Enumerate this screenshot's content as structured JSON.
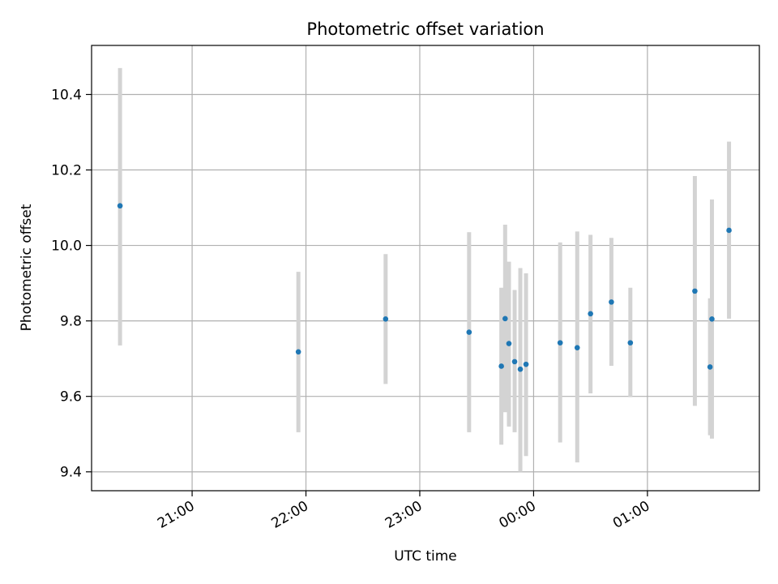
{
  "chart_data": {
    "type": "scatter",
    "title": "Photometric offset variation",
    "xlabel": "UTC time",
    "ylabel": "Photometric offset",
    "x_axis": {
      "kind": "time",
      "xlim": [
        "20:07",
        "01:59"
      ],
      "ticks": [
        "21:00",
        "22:00",
        "23:00",
        "00:00",
        "01:00"
      ]
    },
    "y_axis": {
      "ylim": [
        9.35,
        10.53
      ],
      "ticks": [
        "9.4",
        "9.6",
        "9.8",
        "10.0",
        "10.2",
        "10.4"
      ]
    },
    "grid": true,
    "colors": {
      "point": "#1f77b4",
      "errorbar": "#d3d3d3",
      "grid": "#b0b0b0"
    },
    "points": [
      {
        "x": "20:22",
        "y": 10.105,
        "err_low": 9.735,
        "err_high": 10.47
      },
      {
        "x": "21:56",
        "y": 9.718,
        "err_low": 9.505,
        "err_high": 9.93
      },
      {
        "x": "22:42",
        "y": 9.805,
        "err_low": 9.633,
        "err_high": 9.977
      },
      {
        "x": "23:26",
        "y": 9.77,
        "err_low": 9.505,
        "err_high": 10.035
      },
      {
        "x": "23:43",
        "y": 9.68,
        "err_low": 9.472,
        "err_high": 9.888
      },
      {
        "x": "23:45",
        "y": 9.806,
        "err_low": 9.558,
        "err_high": 10.055
      },
      {
        "x": "23:47",
        "y": 9.74,
        "err_low": 9.52,
        "err_high": 9.957
      },
      {
        "x": "23:50",
        "y": 9.692,
        "err_low": 9.505,
        "err_high": 9.882
      },
      {
        "x": "23:53",
        "y": 9.672,
        "err_low": 9.4,
        "err_high": 9.94
      },
      {
        "x": "23:56",
        "y": 9.685,
        "err_low": 9.442,
        "err_high": 9.926
      },
      {
        "x": "00:14",
        "y": 9.742,
        "err_low": 9.478,
        "err_high": 10.008
      },
      {
        "x": "00:23",
        "y": 9.729,
        "err_low": 9.425,
        "err_high": 10.037
      },
      {
        "x": "00:30",
        "y": 9.819,
        "err_low": 9.608,
        "err_high": 10.028
      },
      {
        "x": "00:41",
        "y": 9.85,
        "err_low": 9.681,
        "err_high": 10.02
      },
      {
        "x": "00:51",
        "y": 9.742,
        "err_low": 9.598,
        "err_high": 9.888
      },
      {
        "x": "01:25",
        "y": 9.879,
        "err_low": 9.575,
        "err_high": 10.184
      },
      {
        "x": "01:33",
        "y": 9.678,
        "err_low": 9.497,
        "err_high": 9.86
      },
      {
        "x": "01:34",
        "y": 9.805,
        "err_low": 9.488,
        "err_high": 10.122
      },
      {
        "x": "01:43",
        "y": 10.04,
        "err_low": 9.806,
        "err_high": 10.275
      }
    ]
  }
}
